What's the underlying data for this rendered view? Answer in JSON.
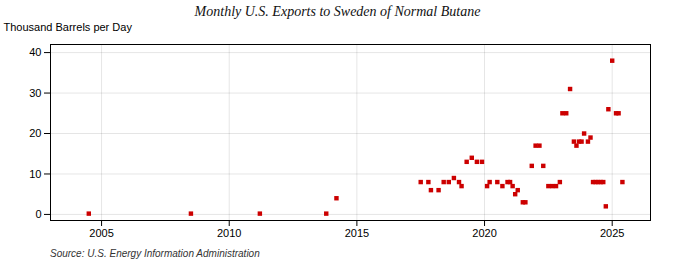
{
  "chart_data": {
    "type": "scatter",
    "title": "Monthly U.S. Exports to Sweden of Normal Butane",
    "ylabel": "Thousand Barrels per Day",
    "annotations": [
      "Source: U.S. Energy Information Administration"
    ],
    "color": "#cc0000",
    "marker": "square",
    "grid": true,
    "xlim": [
      2003.0,
      2026.5
    ],
    "ylim": [
      -1.5,
      42
    ],
    "xticks": [
      2005,
      2010,
      2015,
      2020,
      2025
    ],
    "yticks": [
      0,
      10,
      20,
      30,
      40
    ],
    "x": [
      2004.5,
      2008.5,
      2011.2,
      2013.8,
      2014.2,
      2017.5,
      2017.8,
      2017.9,
      2018.2,
      2018.4,
      2018.6,
      2018.8,
      2019.0,
      2019.1,
      2019.3,
      2019.5,
      2019.7,
      2019.9,
      2020.1,
      2020.2,
      2020.5,
      2020.7,
      2020.9,
      2021.0,
      2021.1,
      2021.2,
      2021.3,
      2021.5,
      2021.6,
      2021.85,
      2022.0,
      2022.15,
      2022.3,
      2022.5,
      2022.65,
      2022.8,
      2022.95,
      2023.05,
      2023.2,
      2023.35,
      2023.5,
      2023.6,
      2023.7,
      2023.8,
      2023.9,
      2024.05,
      2024.15,
      2024.25,
      2024.35,
      2024.45,
      2024.55,
      2024.65,
      2024.75,
      2024.85,
      2025.0,
      2025.15,
      2025.25,
      2025.4
    ],
    "values": [
      0.2,
      0.2,
      0.2,
      0.2,
      4,
      8,
      8,
      6,
      6,
      8,
      8,
      9,
      8,
      7,
      13,
      14,
      13,
      13,
      7,
      8,
      8,
      7,
      8,
      8,
      7,
      5,
      6,
      3,
      3,
      12,
      17,
      17,
      12,
      7,
      7,
      7,
      8,
      25,
      25,
      31,
      18,
      17,
      18,
      18,
      20,
      18,
      19,
      8,
      8,
      8,
      8,
      8,
      2,
      26,
      38,
      25,
      25,
      8
    ]
  }
}
